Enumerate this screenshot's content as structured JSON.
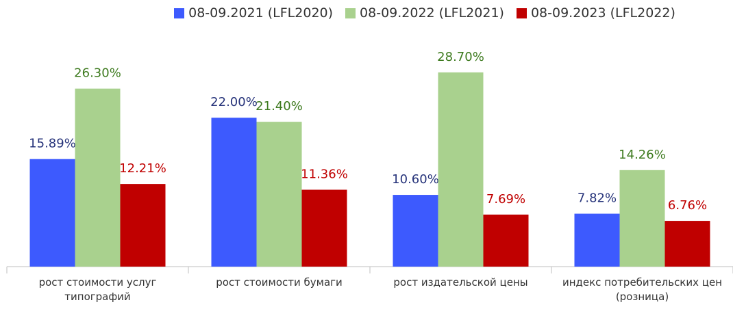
{
  "chart_data": {
    "type": "bar",
    "categories": [
      "рост стоимости услуг типографий",
      "рост стоимости бумаги",
      "рост издательской цены",
      "индекс потребительских цен (розница)"
    ],
    "series": [
      {
        "name": "08-09.2021 (LFL2020)",
        "color": "#3d5afe",
        "label_color": "#26337a",
        "values": [
          15.89,
          22.0,
          10.6,
          7.82
        ],
        "value_labels": [
          "15.89%",
          "22.00%",
          "10.60%",
          "7.82%"
        ]
      },
      {
        "name": "08-09.2022 (LFL2021)",
        "color": "#a9d18e",
        "label_color": "#3d7a1e",
        "values": [
          26.3,
          21.4,
          28.7,
          14.26
        ],
        "value_labels": [
          "26.30%",
          "21.40%",
          "28.70%",
          "14.26%"
        ]
      },
      {
        "name": "08-09.2023 (LFL2022)",
        "color": "#c00000",
        "label_color": "#c00000",
        "values": [
          12.21,
          11.36,
          7.69,
          6.76
        ],
        "value_labels": [
          "12.21%",
          "11.36%",
          "7.69%",
          "6.76%"
        ]
      }
    ]
  }
}
